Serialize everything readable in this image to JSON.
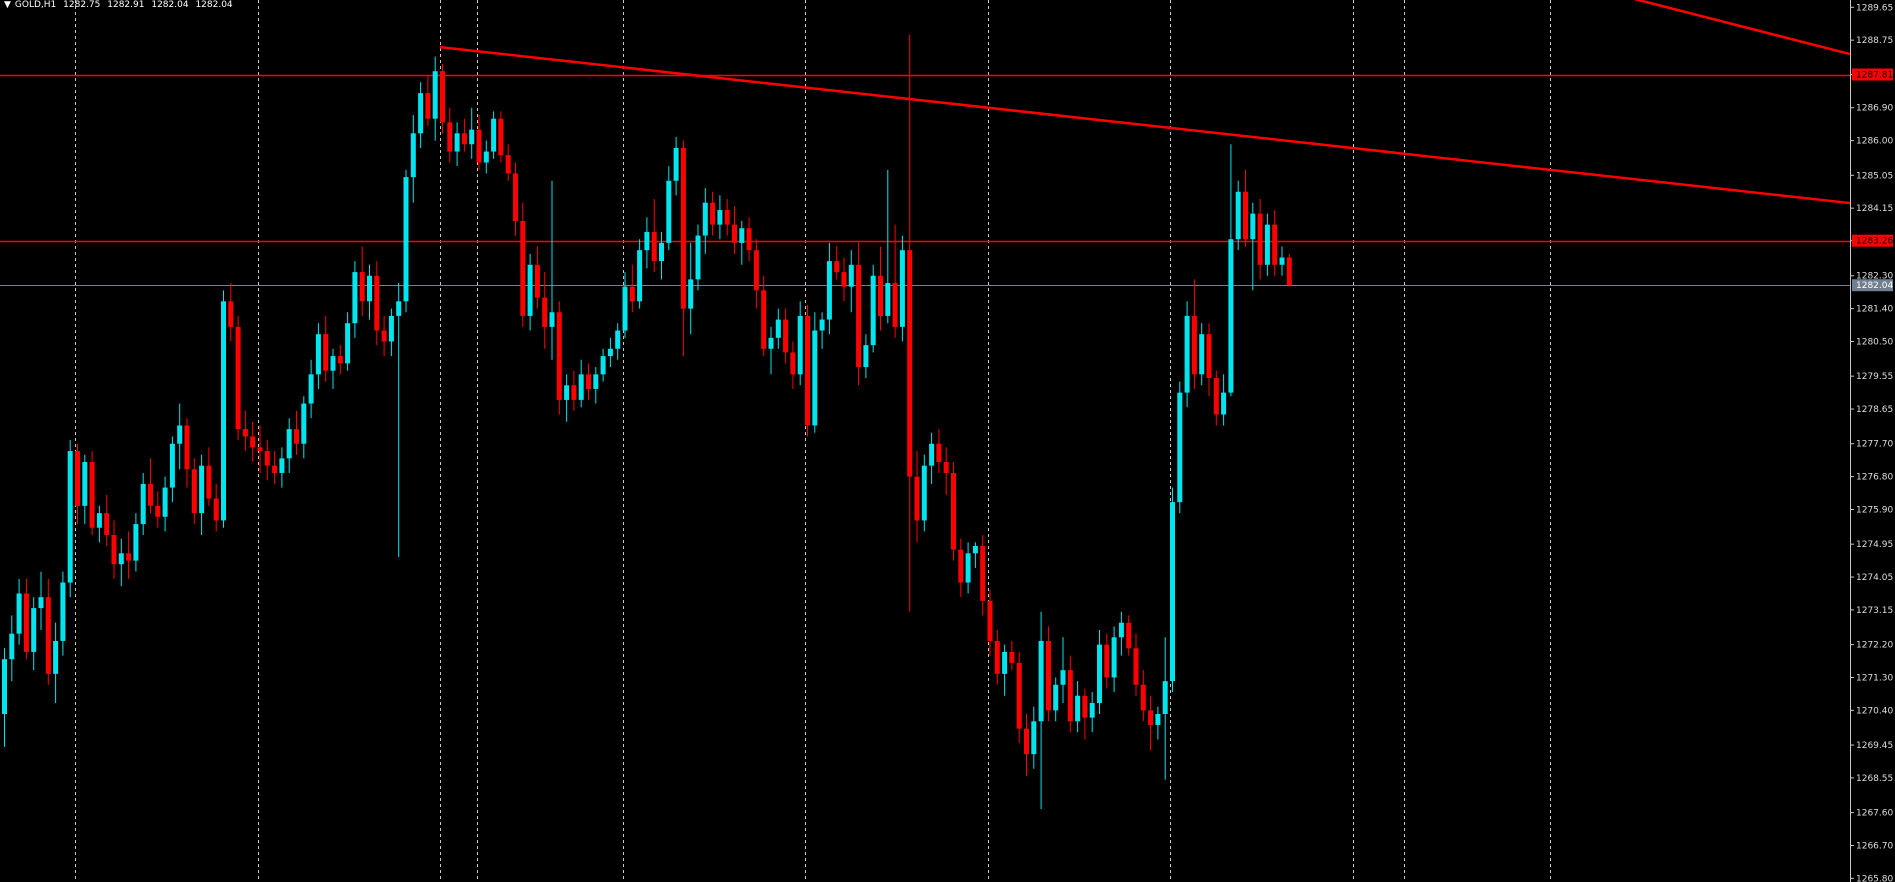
{
  "header": {
    "symbol": "GOLD,H1",
    "open": "1282.75",
    "high": "1282.91",
    "low": "1282.04",
    "close": "1282.04"
  },
  "chart_data": {
    "type": "candlestick",
    "symbol": "GOLD",
    "timeframe": "H1",
    "y_ticks": [
      "1289.65",
      "1288.75",
      "1287.81",
      "1286.90",
      "1286.00",
      "1285.05",
      "1284.15",
      "1283.26",
      "1282.30",
      "1281.40",
      "1280.50",
      "1279.55",
      "1278.65",
      "1277.70",
      "1276.80",
      "1275.90",
      "1274.95",
      "1274.05",
      "1273.15",
      "1272.20",
      "1271.30",
      "1270.40",
      "1269.45",
      "1268.55",
      "1267.60",
      "1266.70",
      "1265.80"
    ],
    "ylim": [
      1265.7,
      1289.85
    ],
    "grid": "vertical dashed",
    "colors": {
      "up": "#00e5ee",
      "down": "#ff0000",
      "background": "#000000",
      "grid": "#c8c8c8",
      "line": "#ff0000",
      "price_line": "#708090"
    },
    "horizontal_levels": [
      {
        "price": 1287.81,
        "label": "1287.81",
        "color": "#ff0000"
      },
      {
        "price": 1283.26,
        "label": "1283.26",
        "color": "#ff0000"
      },
      {
        "price": 1282.04,
        "label": "1282.04",
        "color": "#708090"
      }
    ],
    "trendlines": [
      {
        "from": [
          60,
          1288.56
        ],
        "to": [
          255,
          1284.29
        ]
      },
      {
        "from": [
          223,
          1289.91
        ],
        "to": [
          255,
          1288.37
        ]
      }
    ],
    "separators": [
      10,
      35,
      60,
      65,
      85,
      110,
      135,
      160,
      185,
      192,
      212
    ],
    "candles": [
      [
        1270.3,
        1272.1,
        1269.4,
        1271.8
      ],
      [
        1271.8,
        1273.0,
        1271.2,
        1272.5
      ],
      [
        1272.5,
        1274.0,
        1272.2,
        1273.6
      ],
      [
        1273.6,
        1274.0,
        1271.8,
        1272.0
      ],
      [
        1272.0,
        1273.5,
        1271.5,
        1273.2
      ],
      [
        1273.2,
        1274.2,
        1272.6,
        1273.5
      ],
      [
        1273.5,
        1274.0,
        1271.1,
        1271.4
      ],
      [
        1271.4,
        1272.8,
        1270.6,
        1272.3
      ],
      [
        1272.3,
        1274.2,
        1271.9,
        1273.9
      ],
      [
        1273.9,
        1277.8,
        1273.5,
        1277.5
      ],
      [
        1277.5,
        1277.7,
        1275.5,
        1276.0
      ],
      [
        1276.0,
        1277.4,
        1275.5,
        1277.2
      ],
      [
        1277.2,
        1277.5,
        1275.2,
        1275.4
      ],
      [
        1275.4,
        1276.0,
        1275.0,
        1275.8
      ],
      [
        1275.8,
        1276.3,
        1274.9,
        1275.2
      ],
      [
        1275.2,
        1275.6,
        1274.0,
        1274.4
      ],
      [
        1274.4,
        1275.1,
        1273.8,
        1274.7
      ],
      [
        1274.7,
        1275.3,
        1274.0,
        1274.5
      ],
      [
        1274.5,
        1275.8,
        1274.2,
        1275.5
      ],
      [
        1275.5,
        1276.9,
        1275.2,
        1276.6
      ],
      [
        1276.6,
        1277.3,
        1275.8,
        1276.0
      ],
      [
        1276.0,
        1276.4,
        1275.4,
        1275.7
      ],
      [
        1275.7,
        1276.8,
        1275.3,
        1276.5
      ],
      [
        1276.5,
        1277.9,
        1276.1,
        1277.7
      ],
      [
        1277.7,
        1278.8,
        1277.0,
        1278.2
      ],
      [
        1278.2,
        1278.4,
        1276.5,
        1277.0
      ],
      [
        1277.0,
        1277.3,
        1275.5,
        1275.8
      ],
      [
        1275.8,
        1277.4,
        1275.2,
        1277.1
      ],
      [
        1277.1,
        1277.6,
        1276.0,
        1276.2
      ],
      [
        1276.2,
        1276.6,
        1275.3,
        1275.6
      ],
      [
        1275.6,
        1281.9,
        1275.4,
        1281.6
      ],
      [
        1281.6,
        1282.1,
        1280.5,
        1280.9
      ],
      [
        1280.9,
        1281.2,
        1277.8,
        1278.1
      ],
      [
        1278.1,
        1278.6,
        1277.5,
        1277.9
      ],
      [
        1277.9,
        1278.3,
        1277.2,
        1277.6
      ],
      [
        1277.6,
        1278.2,
        1276.9,
        1277.5
      ],
      [
        1277.5,
        1277.8,
        1276.7,
        1277.1
      ],
      [
        1277.1,
        1277.5,
        1276.6,
        1276.9
      ],
      [
        1276.9,
        1277.6,
        1276.5,
        1277.3
      ],
      [
        1277.3,
        1278.4,
        1276.9,
        1278.1
      ],
      [
        1278.1,
        1278.6,
        1277.4,
        1277.7
      ],
      [
        1277.7,
        1279.0,
        1277.3,
        1278.8
      ],
      [
        1278.8,
        1280.0,
        1278.4,
        1279.6
      ],
      [
        1279.6,
        1281.0,
        1279.2,
        1280.7
      ],
      [
        1280.7,
        1281.2,
        1279.4,
        1279.7
      ],
      [
        1279.7,
        1280.3,
        1279.2,
        1280.1
      ],
      [
        1280.1,
        1280.4,
        1279.6,
        1279.9
      ],
      [
        1279.9,
        1281.3,
        1279.7,
        1281.0
      ],
      [
        1281.0,
        1282.7,
        1280.6,
        1282.4
      ],
      [
        1282.4,
        1283.1,
        1281.2,
        1281.6
      ],
      [
        1281.6,
        1282.6,
        1281.1,
        1282.3
      ],
      [
        1282.3,
        1282.7,
        1280.4,
        1280.8
      ],
      [
        1280.8,
        1281.2,
        1280.1,
        1280.5
      ],
      [
        1280.5,
        1281.4,
        1280.1,
        1281.2
      ],
      [
        1281.2,
        1282.1,
        1274.6,
        1281.6
      ],
      [
        1281.6,
        1285.2,
        1281.3,
        1285.0
      ],
      [
        1285.0,
        1286.7,
        1284.3,
        1286.2
      ],
      [
        1286.2,
        1287.6,
        1285.8,
        1287.3
      ],
      [
        1287.3,
        1287.8,
        1286.4,
        1286.6
      ],
      [
        1286.6,
        1288.3,
        1286.0,
        1287.9
      ],
      [
        1287.9,
        1288.1,
        1286.2,
        1286.5
      ],
      [
        1286.5,
        1286.9,
        1285.4,
        1285.7
      ],
      [
        1285.7,
        1286.5,
        1285.3,
        1286.2
      ],
      [
        1286.2,
        1286.6,
        1285.7,
        1285.9
      ],
      [
        1285.9,
        1286.9,
        1285.5,
        1286.3
      ],
      [
        1286.3,
        1286.7,
        1285.2,
        1285.4
      ],
      [
        1285.4,
        1286.0,
        1285.1,
        1285.7
      ],
      [
        1285.7,
        1286.8,
        1285.5,
        1286.6
      ],
      [
        1286.6,
        1286.8,
        1285.4,
        1285.6
      ],
      [
        1285.6,
        1285.9,
        1284.9,
        1285.1
      ],
      [
        1285.1,
        1285.4,
        1283.4,
        1283.8
      ],
      [
        1283.8,
        1284.3,
        1280.9,
        1281.2
      ],
      [
        1281.2,
        1282.9,
        1280.8,
        1282.6
      ],
      [
        1282.6,
        1283.1,
        1281.4,
        1281.7
      ],
      [
        1281.7,
        1282.4,
        1280.3,
        1280.9
      ],
      [
        1280.9,
        1284.9,
        1280.0,
        1281.3
      ],
      [
        1281.3,
        1281.6,
        1278.5,
        1278.9
      ],
      [
        1278.9,
        1279.6,
        1278.3,
        1279.3
      ],
      [
        1279.3,
        1279.7,
        1278.6,
        1278.9
      ],
      [
        1278.9,
        1280.0,
        1278.7,
        1279.6
      ],
      [
        1279.6,
        1279.9,
        1278.9,
        1279.2
      ],
      [
        1279.2,
        1279.8,
        1278.8,
        1279.6
      ],
      [
        1279.6,
        1280.3,
        1279.4,
        1280.1
      ],
      [
        1280.1,
        1280.6,
        1279.8,
        1280.3
      ],
      [
        1280.3,
        1281.0,
        1280.0,
        1280.8
      ],
      [
        1280.8,
        1282.4,
        1280.6,
        1282.0
      ],
      [
        1282.0,
        1282.6,
        1281.3,
        1281.6
      ],
      [
        1281.6,
        1283.3,
        1281.4,
        1283.0
      ],
      [
        1283.0,
        1283.9,
        1282.5,
        1283.5
      ],
      [
        1283.5,
        1284.4,
        1282.4,
        1282.7
      ],
      [
        1282.7,
        1283.5,
        1282.2,
        1283.2
      ],
      [
        1283.2,
        1285.3,
        1283.0,
        1284.9
      ],
      [
        1284.9,
        1286.1,
        1284.5,
        1285.8
      ],
      [
        1285.8,
        1286.0,
        1280.1,
        1281.4
      ],
      [
        1281.4,
        1283.2,
        1280.7,
        1282.2
      ],
      [
        1282.2,
        1283.7,
        1281.9,
        1283.4
      ],
      [
        1283.4,
        1284.7,
        1282.9,
        1284.3
      ],
      [
        1284.3,
        1284.6,
        1283.4,
        1283.7
      ],
      [
        1283.7,
        1284.5,
        1283.3,
        1284.1
      ],
      [
        1284.1,
        1284.4,
        1283.4,
        1283.7
      ],
      [
        1283.7,
        1284.2,
        1282.9,
        1283.2
      ],
      [
        1283.2,
        1283.8,
        1282.6,
        1283.6
      ],
      [
        1283.6,
        1283.9,
        1282.7,
        1283.0
      ],
      [
        1283.0,
        1283.3,
        1281.4,
        1281.9
      ],
      [
        1281.9,
        1282.3,
        1280.1,
        1280.3
      ],
      [
        1280.3,
        1280.9,
        1279.6,
        1280.6
      ],
      [
        1280.6,
        1281.4,
        1280.3,
        1281.1
      ],
      [
        1281.1,
        1281.4,
        1279.9,
        1280.2
      ],
      [
        1280.2,
        1280.5,
        1279.2,
        1279.6
      ],
      [
        1279.6,
        1281.6,
        1279.3,
        1281.2
      ],
      [
        1281.2,
        1281.5,
        1277.9,
        1278.2
      ],
      [
        1278.2,
        1281.3,
        1278.0,
        1280.8
      ],
      [
        1280.8,
        1281.3,
        1280.3,
        1281.1
      ],
      [
        1281.1,
        1283.2,
        1280.7,
        1282.7
      ],
      [
        1282.7,
        1283.1,
        1282.2,
        1282.4
      ],
      [
        1282.4,
        1282.8,
        1281.6,
        1282.0
      ],
      [
        1282.0,
        1283.0,
        1281.3,
        1282.6
      ],
      [
        1282.6,
        1283.2,
        1279.3,
        1279.8
      ],
      [
        1279.8,
        1280.7,
        1279.5,
        1280.4
      ],
      [
        1280.4,
        1282.6,
        1280.2,
        1282.3
      ],
      [
        1282.3,
        1283.1,
        1280.8,
        1281.2
      ],
      [
        1281.2,
        1285.2,
        1281.0,
        1282.1
      ],
      [
        1282.1,
        1283.7,
        1280.6,
        1280.9
      ],
      [
        1280.9,
        1283.4,
        1280.5,
        1283.0
      ],
      [
        1283.0,
        1288.9,
        1273.1,
        1276.8
      ],
      [
        1276.8,
        1277.5,
        1275.0,
        1275.6
      ],
      [
        1275.6,
        1277.4,
        1275.3,
        1277.1
      ],
      [
        1277.1,
        1278.0,
        1276.6,
        1277.7
      ],
      [
        1277.7,
        1278.1,
        1276.9,
        1277.2
      ],
      [
        1277.2,
        1277.6,
        1276.3,
        1276.9
      ],
      [
        1276.9,
        1277.2,
        1274.5,
        1274.8
      ],
      [
        1274.8,
        1275.1,
        1273.5,
        1273.9
      ],
      [
        1273.9,
        1275.0,
        1273.6,
        1274.7
      ],
      [
        1274.7,
        1275.0,
        1274.3,
        1274.9
      ],
      [
        1274.9,
        1275.2,
        1273.0,
        1273.4
      ],
      [
        1273.4,
        1273.7,
        1271.9,
        1272.3
      ],
      [
        1272.3,
        1272.6,
        1271.1,
        1271.4
      ],
      [
        1271.4,
        1272.2,
        1270.8,
        1272.0
      ],
      [
        1272.0,
        1272.3,
        1271.5,
        1271.7
      ],
      [
        1271.7,
        1272.0,
        1269.5,
        1269.9
      ],
      [
        1269.9,
        1270.3,
        1268.6,
        1269.2
      ],
      [
        1269.2,
        1270.5,
        1268.8,
        1270.1
      ],
      [
        1270.1,
        1273.1,
        1267.7,
        1272.3
      ],
      [
        1272.3,
        1272.7,
        1270.1,
        1270.4
      ],
      [
        1270.4,
        1271.3,
        1270.1,
        1271.1
      ],
      [
        1271.1,
        1272.4,
        1270.6,
        1271.5
      ],
      [
        1271.5,
        1271.9,
        1269.8,
        1270.1
      ],
      [
        1270.1,
        1271.2,
        1269.8,
        1270.8
      ],
      [
        1270.8,
        1271.0,
        1269.6,
        1270.2
      ],
      [
        1270.2,
        1270.9,
        1269.8,
        1270.6
      ],
      [
        1270.6,
        1272.6,
        1270.3,
        1272.2
      ],
      [
        1272.2,
        1272.5,
        1271.0,
        1271.3
      ],
      [
        1271.3,
        1272.7,
        1270.9,
        1272.4
      ],
      [
        1272.4,
        1273.1,
        1271.9,
        1272.8
      ],
      [
        1272.8,
        1273.0,
        1271.9,
        1272.1
      ],
      [
        1272.1,
        1272.5,
        1270.8,
        1271.1
      ],
      [
        1271.1,
        1271.5,
        1270.1,
        1270.4
      ],
      [
        1270.4,
        1270.8,
        1269.3,
        1270.0
      ],
      [
        1270.0,
        1270.5,
        1269.6,
        1270.3
      ],
      [
        1270.3,
        1272.4,
        1268.5,
        1271.2
      ],
      [
        1271.2,
        1276.5,
        1270.9,
        1276.1
      ],
      [
        1276.1,
        1279.4,
        1275.8,
        1279.1
      ],
      [
        1279.1,
        1281.6,
        1278.7,
        1281.2
      ],
      [
        1281.2,
        1282.2,
        1279.2,
        1279.6
      ],
      [
        1279.6,
        1281.0,
        1279.3,
        1280.7
      ],
      [
        1280.7,
        1281.0,
        1279.0,
        1279.5
      ],
      [
        1279.5,
        1279.7,
        1278.2,
        1278.5
      ],
      [
        1278.5,
        1279.6,
        1278.2,
        1279.1
      ],
      [
        1279.1,
        1285.9,
        1279.0,
        1283.3
      ],
      [
        1283.3,
        1284.9,
        1283.0,
        1284.6
      ],
      [
        1284.6,
        1285.2,
        1283.1,
        1283.3
      ],
      [
        1283.3,
        1284.3,
        1281.9,
        1284.0
      ],
      [
        1284.0,
        1284.4,
        1282.2,
        1282.6
      ],
      [
        1282.6,
        1284.0,
        1282.3,
        1283.7
      ],
      [
        1283.7,
        1284.1,
        1282.3,
        1282.6
      ],
      [
        1282.6,
        1283.1,
        1282.3,
        1282.8
      ],
      [
        1282.8,
        1282.9,
        1282.0,
        1282.04
      ]
    ]
  }
}
